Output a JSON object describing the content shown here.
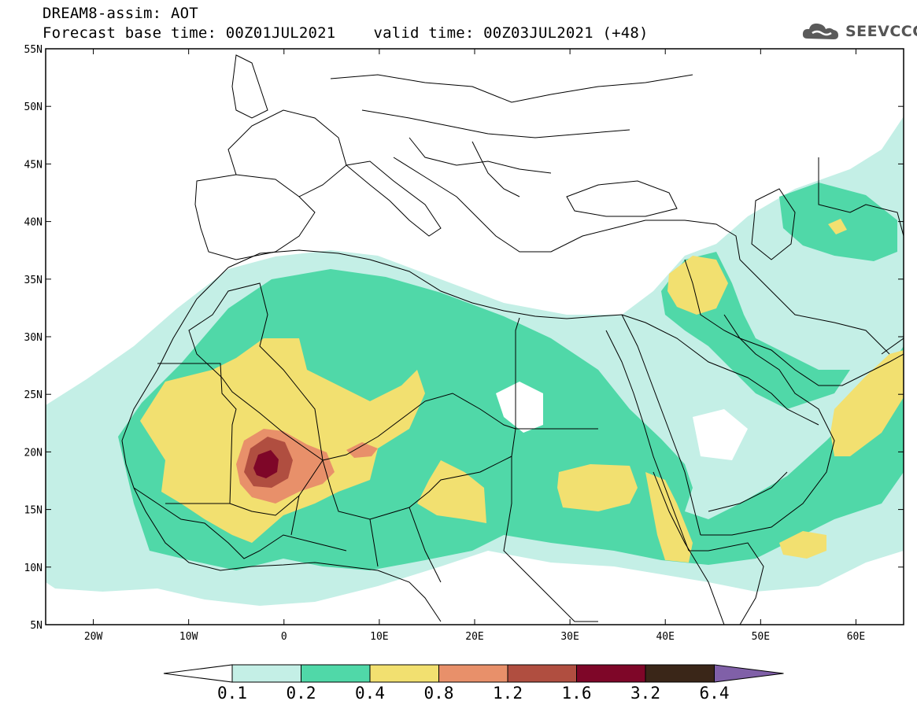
{
  "header": {
    "title_line1": "DREAM8-assim: AOT",
    "base_time_label": "Forecast base time: 00Z01JUL2021",
    "valid_time_label": "valid time: 00Z03JUL2021 (+48)"
  },
  "logo": {
    "text": "SEEVCCC",
    "icon": "cloud-icon"
  },
  "map": {
    "lon_range": [
      -25,
      65
    ],
    "lat_range": [
      5,
      55
    ],
    "lat_ticks": [
      {
        "lat": 55,
        "label": "55N"
      },
      {
        "lat": 50,
        "label": "50N"
      },
      {
        "lat": 45,
        "label": "45N"
      },
      {
        "lat": 40,
        "label": "40N"
      },
      {
        "lat": 35,
        "label": "35N"
      },
      {
        "lat": 30,
        "label": "30N"
      },
      {
        "lat": 25,
        "label": "25N"
      },
      {
        "lat": 20,
        "label": "20N"
      },
      {
        "lat": 15,
        "label": "15N"
      },
      {
        "lat": 10,
        "label": "10N"
      },
      {
        "lat": 5,
        "label": "5N"
      }
    ],
    "lon_ticks": [
      {
        "lon": -20,
        "label": "20W"
      },
      {
        "lon": -10,
        "label": "10W"
      },
      {
        "lon": 0,
        "label": "0"
      },
      {
        "lon": 10,
        "label": "10E"
      },
      {
        "lon": 20,
        "label": "20E"
      },
      {
        "lon": 30,
        "label": "30E"
      },
      {
        "lon": 40,
        "label": "40E"
      },
      {
        "lon": 50,
        "label": "50E"
      },
      {
        "lon": 60,
        "label": "60E"
      }
    ]
  },
  "colorbar": {
    "levels": [
      "0.1",
      "0.2",
      "0.4",
      "0.8",
      "1.2",
      "1.6",
      "3.2",
      "6.4"
    ],
    "colors": [
      "#ffffff",
      "#c4efe6",
      "#50d8a8",
      "#f2e070",
      "#e8906a",
      "#b04e40",
      "#7e0628",
      "#3a2618",
      "#8060a8"
    ]
  }
}
